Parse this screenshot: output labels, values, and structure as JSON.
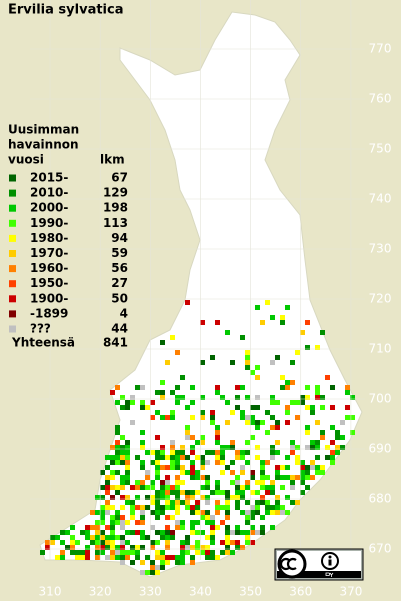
{
  "title": "Ervilia sylvatica",
  "legend": {
    "header": [
      "Uusimman",
      "havainnon",
      "vuosi"
    ],
    "count_header": "lkm",
    "rows": [
      {
        "label": "2015-",
        "count": 67,
        "color": "#006400"
      },
      {
        "label": "2010-",
        "count": 129,
        "color": "#009000"
      },
      {
        "label": "2000-",
        "count": 198,
        "color": "#00c800"
      },
      {
        "label": "1990-",
        "count": 113,
        "color": "#40ff00"
      },
      {
        "label": "1980-",
        "count": 94,
        "color": "#ffff00"
      },
      {
        "label": "1970-",
        "count": 59,
        "color": "#ffcc00"
      },
      {
        "label": "1960-",
        "count": 56,
        "color": "#ff8000"
      },
      {
        "label": "1950-",
        "count": 27,
        "color": "#ff4000"
      },
      {
        "label": "1900-",
        "count": 50,
        "color": "#cc0000"
      },
      {
        "label": "-1899",
        "count": 4,
        "color": "#800000"
      },
      {
        "label": "???",
        "count": 44,
        "color": "#c0c0c0"
      }
    ],
    "total_label": "Yhteensä",
    "total": 841
  },
  "axes": {
    "xticks": [
      310,
      320,
      330,
      340,
      350,
      360,
      370
    ],
    "yticks": [
      670,
      680,
      690,
      700,
      710,
      720,
      730,
      740,
      750,
      760,
      770
    ]
  }
}
